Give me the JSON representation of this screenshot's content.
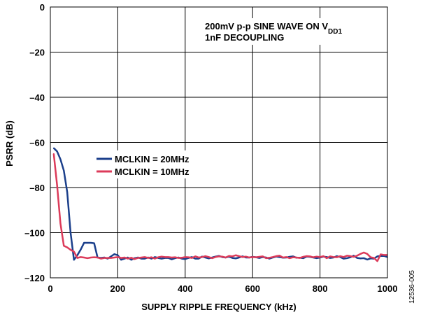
{
  "chart_data": {
    "type": "line",
    "title": "",
    "xlabel": "SUPPLY RIPPLE FREQUENCY (kHz)",
    "ylabel": "PSRR (dB)",
    "xlim": [
      0,
      1000
    ],
    "ylim": [
      -120,
      0
    ],
    "xticks": [
      0,
      200,
      400,
      600,
      800,
      1000
    ],
    "yticks": [
      0,
      -20,
      -40,
      -60,
      -80,
      -100,
      -120
    ],
    "xtick_labels": [
      "0",
      "200",
      "400",
      "600",
      "800",
      "1000"
    ],
    "ytick_labels": [
      "0",
      "–20",
      "–40",
      "–60",
      "–80",
      "–100",
      "–120"
    ],
    "grid": true,
    "legend_position": "center-left",
    "annotation": {
      "line1_main": "200mV p-p SINE WAVE ON V",
      "line1_sub": "DD1",
      "line2": "1nF DECOUPLING"
    },
    "figure_id": "12536-005",
    "series": [
      {
        "name": "MCLKIN = 20MHz",
        "color": "#1b3f8b",
        "x": [
          10,
          20,
          30,
          40,
          50,
          60,
          70,
          80,
          90,
          100,
          110,
          120,
          130,
          140,
          150,
          160,
          170,
          180,
          190,
          200,
          210,
          220,
          230,
          240,
          250,
          260,
          270,
          280,
          290,
          300,
          310,
          320,
          330,
          340,
          350,
          360,
          370,
          380,
          390,
          400,
          410,
          420,
          430,
          440,
          450,
          460,
          470,
          480,
          490,
          500,
          510,
          520,
          530,
          540,
          550,
          560,
          570,
          580,
          590,
          600,
          610,
          620,
          630,
          640,
          650,
          660,
          670,
          680,
          690,
          700,
          710,
          720,
          730,
          740,
          750,
          760,
          770,
          780,
          790,
          800,
          810,
          820,
          830,
          840,
          850,
          860,
          870,
          880,
          890,
          900,
          910,
          920,
          930,
          940,
          950,
          960,
          970,
          980,
          990,
          1000
        ],
        "y": [
          -62.5,
          -64,
          -67.5,
          -72.5,
          -82,
          -100,
          -112,
          -110,
          -107.5,
          -104.5,
          -104.5,
          -104.5,
          -104.7,
          -111,
          -111.2,
          -111,
          -111.5,
          -110.5,
          -109.5,
          -110,
          -112,
          -111.5,
          -111,
          -112,
          -111.3,
          -111,
          -111.5,
          -111.5,
          -111,
          -111.5,
          -110.8,
          -111.2,
          -111.5,
          -111.2,
          -111.2,
          -111.8,
          -111.3,
          -111,
          -111.5,
          -111.7,
          -111.2,
          -110.8,
          -111.5,
          -111.5,
          -110.6,
          -111,
          -111.4,
          -111,
          -110.6,
          -110.3,
          -110.8,
          -111,
          -110.6,
          -111.2,
          -111.4,
          -111,
          -110.5,
          -111,
          -111,
          -110.7,
          -110.9,
          -111.2,
          -110.8,
          -111,
          -111.5,
          -111,
          -110.6,
          -110.8,
          -111.1,
          -111,
          -110.7,
          -110.5,
          -111.1,
          -111.1,
          -111.3,
          -110.6,
          -110.7,
          -111,
          -111.3,
          -111,
          -110.6,
          -110.8,
          -111.2,
          -111,
          -110.4,
          -110.8,
          -111.5,
          -111.3,
          -110.9,
          -110.2,
          -111.2,
          -111.4,
          -111.3,
          -111.9,
          -111.4,
          -111.5,
          -110.5,
          -110.3,
          -110.3,
          -110.8
        ]
      },
      {
        "name": "MCLKIN = 10MHz",
        "color": "#dc3b5a",
        "x": [
          10,
          20,
          30,
          40,
          50,
          60,
          70,
          80,
          90,
          100,
          110,
          120,
          130,
          140,
          150,
          160,
          170,
          180,
          190,
          200,
          210,
          220,
          230,
          240,
          250,
          260,
          270,
          280,
          290,
          300,
          310,
          320,
          330,
          340,
          350,
          360,
          370,
          380,
          390,
          400,
          410,
          420,
          430,
          440,
          450,
          460,
          470,
          480,
          490,
          500,
          510,
          520,
          530,
          540,
          550,
          560,
          570,
          580,
          590,
          600,
          610,
          620,
          630,
          640,
          650,
          660,
          670,
          680,
          690,
          700,
          710,
          720,
          730,
          740,
          750,
          760,
          770,
          780,
          790,
          800,
          810,
          820,
          830,
          840,
          850,
          860,
          870,
          880,
          890,
          900,
          910,
          920,
          930,
          940,
          950,
          960,
          970,
          980,
          990,
          1000
        ],
        "y": [
          -65,
          -79,
          -96,
          -105.8,
          -106.5,
          -107.6,
          -108.4,
          -111.2,
          -110.8,
          -111,
          -111.3,
          -111,
          -110.9,
          -111,
          -111.5,
          -111.2,
          -111.2,
          -111.2,
          -111,
          -110.8,
          -111.2,
          -111,
          -111.5,
          -111.1,
          -111.7,
          -111.2,
          -111,
          -110.8,
          -111.2,
          -110.9,
          -111.5,
          -110.9,
          -110.6,
          -110.8,
          -110.8,
          -111,
          -110.9,
          -111.2,
          -111.1,
          -110.8,
          -110.9,
          -111.2,
          -110.5,
          -111,
          -110.8,
          -110.4,
          -110.8,
          -111.3,
          -110.8,
          -110.5,
          -110.6,
          -111,
          -110.3,
          -110.5,
          -110,
          -110.4,
          -110.8,
          -110.6,
          -111,
          -110.8,
          -110.9,
          -110.7,
          -110.5,
          -111.3,
          -111.1,
          -110.8,
          -110.4,
          -110.2,
          -111,
          -110.8,
          -111.3,
          -110.9,
          -111,
          -111.2,
          -110.7,
          -110.4,
          -110.5,
          -110.9,
          -110.6,
          -110.8,
          -110.4,
          -111.3,
          -110.5,
          -110.8,
          -110.9,
          -110.4,
          -110.8,
          -110.2,
          -110.4,
          -110.7,
          -110.2,
          -109.4,
          -108.8,
          -109.4,
          -110.9,
          -111.2,
          -112.6,
          -109.6,
          -109.9,
          -109.9
        ]
      }
    ]
  }
}
